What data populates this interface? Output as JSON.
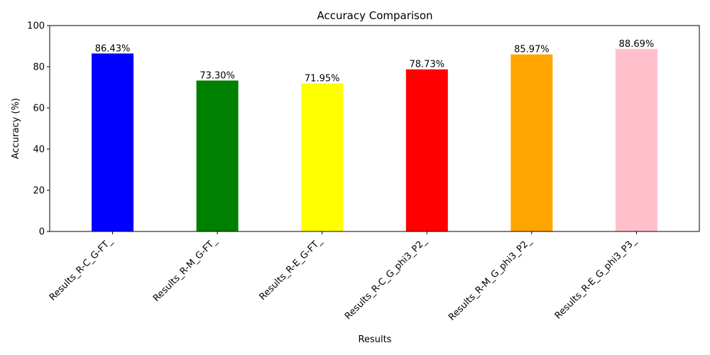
{
  "chart_data": {
    "type": "bar",
    "title": "Accuracy Comparison",
    "xlabel": "Results",
    "ylabel": "Accuracy (%)",
    "ylim": [
      0,
      100
    ],
    "yticks": [
      "0",
      "20",
      "40",
      "60",
      "80",
      "100"
    ],
    "grid": false,
    "legend": "none",
    "categories": [
      "Results_R-C_G-FT_",
      "Results_R-M_G-FT_",
      "Results_R-E_G-FT_",
      "Results_R-C_G_phi3_P2_",
      "Results_R-M_G_phi3_P2_",
      "Results_R-E_G_phi3_P3_"
    ],
    "values": [
      86.43,
      73.3,
      71.95,
      78.73,
      85.97,
      88.69
    ],
    "value_labels": [
      "86.43%",
      "73.30%",
      "71.95%",
      "78.73%",
      "85.97%",
      "88.69%"
    ],
    "colors": [
      "#0000ff",
      "#008000",
      "#ffff00",
      "#ff0000",
      "#ffa500",
      "#ffc0cb"
    ]
  }
}
